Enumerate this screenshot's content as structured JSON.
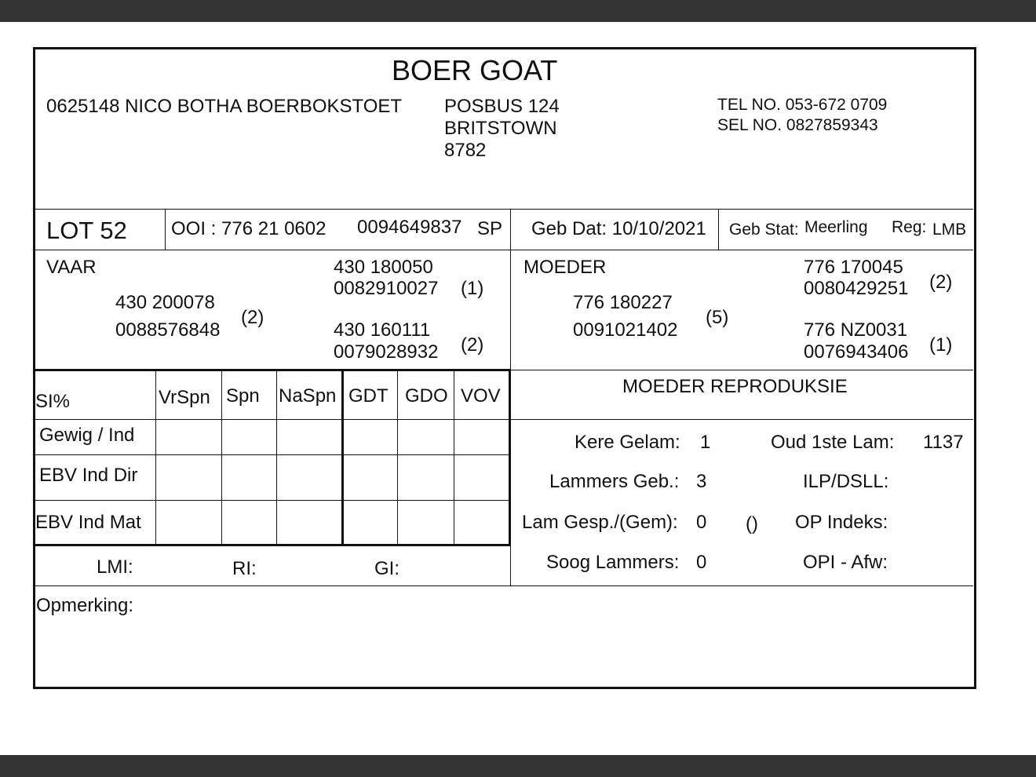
{
  "title": "BOER GOAT",
  "breeder": {
    "id_name": "0625148  NICO BOTHA BOERBOKSTOET",
    "address": [
      "POSBUS 124",
      "BRITSTOWN",
      "8782"
    ],
    "tel": "TEL NO. 053-672 0709",
    "sel": "SEL NO. 0827859343"
  },
  "lot": {
    "label": "LOT  52"
  },
  "ooi": {
    "label": "OOI : 776 21 0602",
    "number": "0094649837",
    "grade": "SP"
  },
  "geb_dat": "Geb Dat: 10/10/2021",
  "geb_stat": {
    "label": "Geb Stat:",
    "value": "Meerling"
  },
  "reg": {
    "label": "Reg:",
    "value": "LMB"
  },
  "vaar": {
    "label": "VAAR",
    "id": "430 200078",
    "number": "0088576848",
    "count": "(2)",
    "sire": {
      "id": "430 180050",
      "number": "0082910027",
      "count": "(1)"
    },
    "dam": {
      "id": "430 160111",
      "number": "0079028932",
      "count": "(2)"
    }
  },
  "moeder": {
    "label": "MOEDER",
    "id": "776 180227",
    "number": "0091021402",
    "count": "(5)",
    "sire": {
      "id": "776 170045",
      "number": "0080429251",
      "count": "(2)"
    },
    "dam": {
      "id": "776 NZ0031",
      "number": "0076943406",
      "count": "(1)"
    }
  },
  "table": {
    "headers": [
      "SI%",
      "VrSpn",
      "Spn",
      "NaSpn",
      "GDT",
      "GDO",
      "VOV"
    ],
    "rows": [
      "Gewig / Ind",
      "EBV Ind Dir",
      "EBV Ind Mat"
    ]
  },
  "indexes": {
    "lmi": "LMI:",
    "ri": "RI:",
    "gi": "GI:"
  },
  "repro": {
    "title": "MOEDER REPRODUKSIE",
    "kere_gelam": {
      "label": "Kere Gelam:",
      "value": "1"
    },
    "oud_1ste_lam": {
      "label": "Oud 1ste Lam:",
      "value": "1137"
    },
    "lammers_geb": {
      "label": "Lammers Geb.:",
      "value": "3"
    },
    "ilp_dsll": {
      "label": "ILP/DSLL:"
    },
    "lam_gesp": {
      "label": "Lam Gesp./(Gem):",
      "value": "0",
      "extra": "()"
    },
    "op_indeks": {
      "label": "OP Indeks:"
    },
    "soog_lammers": {
      "label": "Soog Lammers:",
      "value": "0"
    },
    "opi_afw": {
      "label": "OPI - Afw:"
    }
  },
  "opmerking": "Opmerking:"
}
